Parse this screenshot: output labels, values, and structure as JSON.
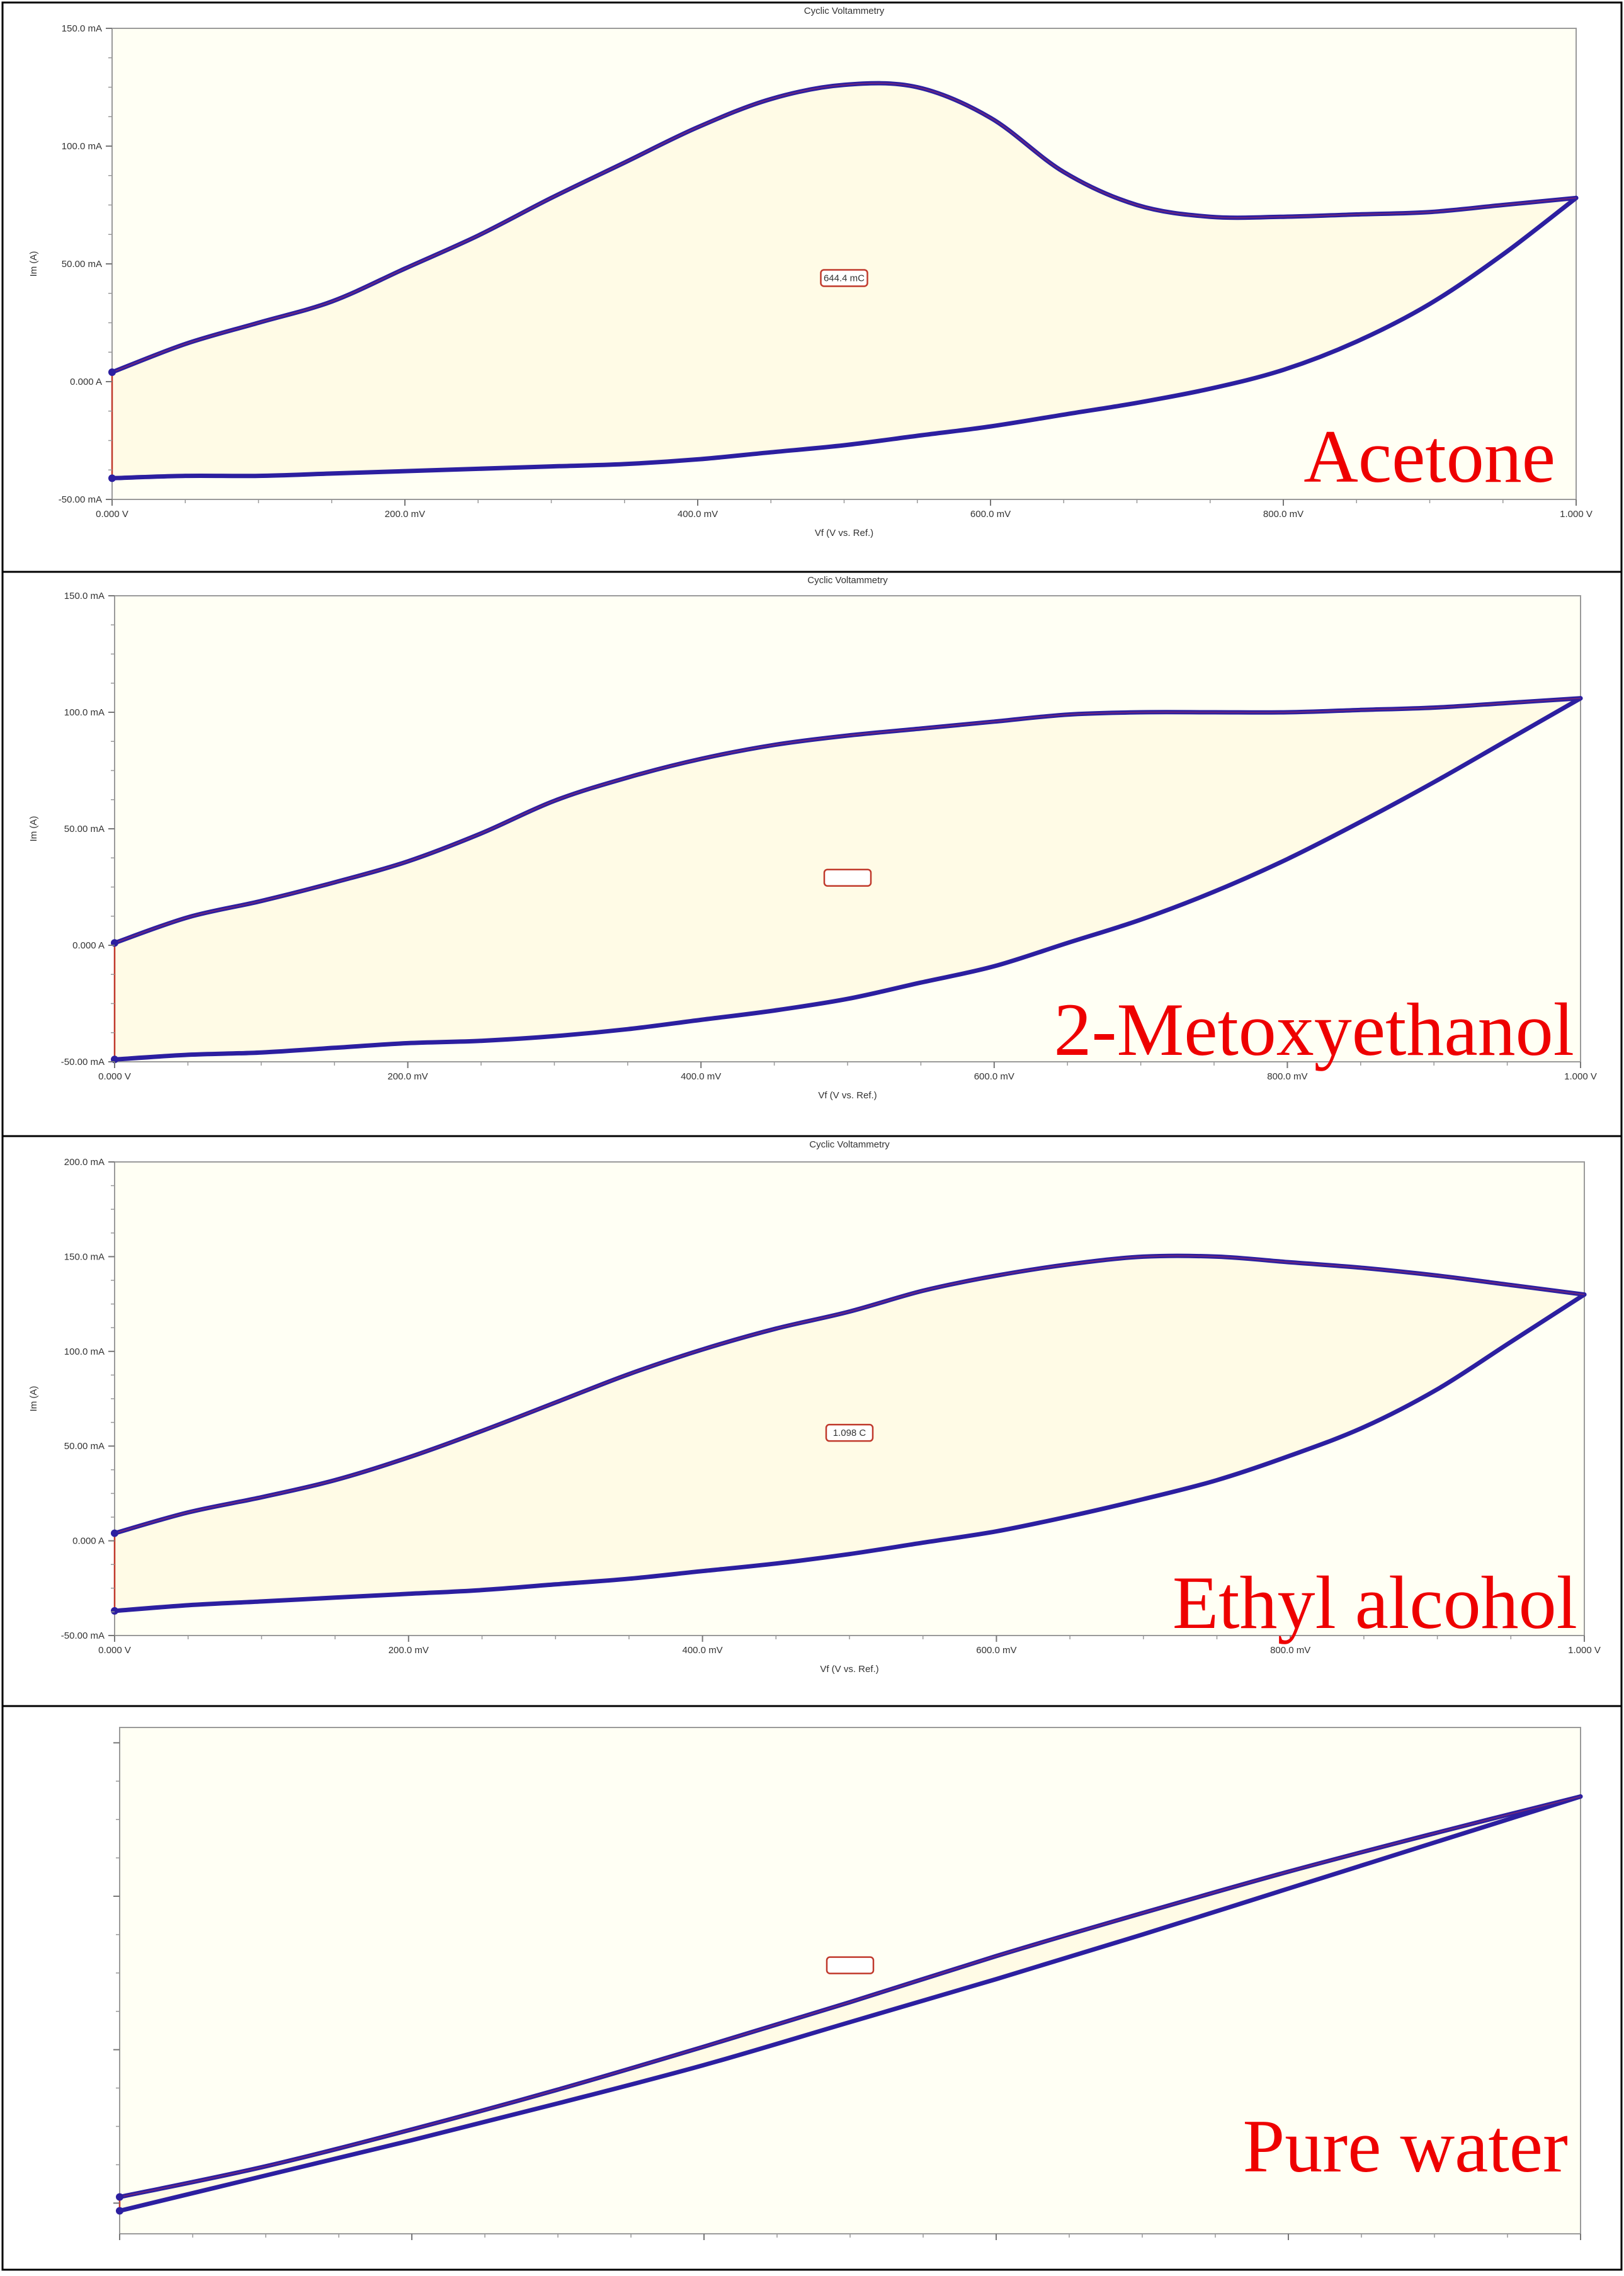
{
  "chart_data": [
    {
      "type": "line",
      "title": "Cyclic Voltammetry",
      "xlabel": "Vf (V vs. Ref.)",
      "ylabel": "Im (A)",
      "xlim": [
        0,
        1
      ],
      "ylim": [
        -50,
        150
      ],
      "x_ticks": [
        0,
        0.2,
        0.4,
        0.6,
        0.8,
        1.0
      ],
      "x_tick_labels": [
        "0.000 V",
        "200.0 mV",
        "400.0 mV",
        "600.0 mV",
        "800.0 mV",
        "1.000 V"
      ],
      "y_ticks": [
        -50,
        0,
        50,
        100,
        150
      ],
      "y_tick_labels": [
        "-50.00 mA",
        "0.000 A",
        "50.00 mA",
        "100.0 mA",
        "150.0 mA"
      ],
      "annotation": "644.4 mC",
      "annotation_at": [
        0.5,
        44
      ],
      "solvent_label": "Acetone",
      "series": [
        {
          "x": [
            0,
            0.05,
            0.1,
            0.15,
            0.2,
            0.25,
            0.3,
            0.35,
            0.4,
            0.45,
            0.5,
            0.55,
            0.6,
            0.65,
            0.7,
            0.75,
            0.8,
            0.85,
            0.9,
            0.95,
            1.0,
            0.95,
            0.9,
            0.85,
            0.8,
            0.75,
            0.7,
            0.65,
            0.6,
            0.55,
            0.5,
            0.45,
            0.4,
            0.35,
            0.3,
            0.25,
            0.2,
            0.15,
            0.1,
            0.05,
            0
          ],
          "y": [
            4,
            16,
            25,
            34,
            48,
            62,
            78,
            93,
            108,
            120,
            126,
            125,
            112,
            89,
            75,
            70,
            70,
            71,
            72,
            75,
            78,
            54,
            33,
            17,
            5,
            -3,
            -9,
            -14,
            -19,
            -23,
            -27,
            -30,
            -33,
            -35,
            -36,
            -37,
            -38,
            -39,
            -40,
            -40,
            -41
          ]
        }
      ]
    },
    {
      "type": "line",
      "title": "Cyclic Voltammetry",
      "xlabel": "Vf (V vs. Ref.)",
      "ylabel": "Im (A)",
      "xlim": [
        0,
        1
      ],
      "ylim": [
        -50,
        150
      ],
      "x_ticks": [
        0,
        0.2,
        0.4,
        0.6,
        0.8,
        1.0
      ],
      "x_tick_labels": [
        "0.000 V",
        "200.0 mV",
        "400.0 mV",
        "600.0 mV",
        "800.0 mV",
        "1.000 V"
      ],
      "y_ticks": [
        -50,
        0,
        50,
        100,
        150
      ],
      "y_tick_labels": [
        "-50.00 mA",
        "0.000 A",
        "50.00 mA",
        "100.0 mA",
        "150.0 mA"
      ],
      "annotation": "",
      "annotation_at": [
        0.5,
        29
      ],
      "solvent_label": "2-Metoxyethanol",
      "series": [
        {
          "x": [
            0,
            0.05,
            0.1,
            0.15,
            0.2,
            0.25,
            0.3,
            0.35,
            0.4,
            0.45,
            0.5,
            0.55,
            0.6,
            0.65,
            0.7,
            0.75,
            0.8,
            0.85,
            0.9,
            0.95,
            1.0,
            0.95,
            0.9,
            0.85,
            0.8,
            0.75,
            0.7,
            0.65,
            0.6,
            0.55,
            0.5,
            0.45,
            0.4,
            0.35,
            0.3,
            0.25,
            0.2,
            0.15,
            0.1,
            0.05,
            0
          ],
          "y": [
            1,
            12,
            19,
            27,
            36,
            48,
            62,
            72,
            80,
            86,
            90,
            93,
            96,
            99,
            100,
            100,
            100,
            101,
            102,
            104,
            106,
            88,
            70,
            53,
            37,
            23,
            11,
            1,
            -9,
            -16,
            -23,
            -28,
            -32,
            -36,
            -39,
            -41,
            -42,
            -44,
            -46,
            -47,
            -49
          ]
        }
      ]
    },
    {
      "type": "line",
      "title": "Cyclic Voltammetry",
      "xlabel": "Vf (V vs. Ref.)",
      "ylabel": "Im (A)",
      "xlim": [
        0,
        1
      ],
      "ylim": [
        -50,
        200
      ],
      "x_ticks": [
        0,
        0.2,
        0.4,
        0.6,
        0.8,
        1.0
      ],
      "x_tick_labels": [
        "0.000 V",
        "200.0 mV",
        "400.0 mV",
        "600.0 mV",
        "800.0 mV",
        "1.000 V"
      ],
      "y_ticks": [
        -50,
        0,
        50,
        100,
        150,
        200
      ],
      "y_tick_labels": [
        "-50.00 mA",
        "0.000 A",
        "50.00 mA",
        "100.0 mA",
        "150.0 mA",
        "200.0 mA"
      ],
      "annotation": "1.098 C",
      "annotation_at": [
        0.5,
        57
      ],
      "solvent_label": "Ethyl alcohol",
      "series": [
        {
          "x": [
            0,
            0.05,
            0.1,
            0.15,
            0.2,
            0.25,
            0.3,
            0.35,
            0.4,
            0.45,
            0.5,
            0.55,
            0.6,
            0.65,
            0.7,
            0.75,
            0.8,
            0.85,
            0.9,
            0.95,
            1.0,
            0.95,
            0.9,
            0.85,
            0.8,
            0.75,
            0.7,
            0.65,
            0.6,
            0.55,
            0.5,
            0.45,
            0.4,
            0.35,
            0.3,
            0.25,
            0.2,
            0.15,
            0.1,
            0.05,
            0
          ],
          "y": [
            4,
            15,
            23,
            32,
            44,
            58,
            73,
            88,
            101,
            112,
            121,
            132,
            140,
            146,
            150,
            150,
            147,
            144,
            140,
            135,
            130,
            105,
            80,
            60,
            45,
            32,
            22,
            13,
            5,
            -1,
            -7,
            -12,
            -16,
            -20,
            -23,
            -26,
            -28,
            -30,
            -32,
            -34,
            -37
          ]
        }
      ]
    },
    {
      "type": "line",
      "title": "",
      "xlabel": "",
      "ylabel": "",
      "xlim": [
        0,
        1
      ],
      "ylim": [
        -20,
        310
      ],
      "x_ticks": [
        0,
        0.2,
        0.4,
        0.6,
        0.8,
        1.0
      ],
      "x_tick_labels": [
        "",
        "",
        "",
        "",
        "",
        ""
      ],
      "y_ticks": [
        0,
        100,
        200,
        300
      ],
      "y_tick_labels": [
        "",
        "",
        "",
        ""
      ],
      "annotation": "",
      "annotation_at": [
        0.5,
        155
      ],
      "solvent_label": "Pure water",
      "series": [
        {
          "x": [
            0,
            0.1,
            0.2,
            0.3,
            0.4,
            0.5,
            0.6,
            0.7,
            0.8,
            0.9,
            1.0,
            0.9,
            0.8,
            0.7,
            0.6,
            0.5,
            0.4,
            0.3,
            0.2,
            0.1,
            0
          ],
          "y": [
            4,
            24,
            48,
            74,
            102,
            131,
            161,
            189,
            216,
            241,
            265,
            235,
            205,
            175,
            146,
            118,
            90,
            65,
            41,
            18,
            -5
          ]
        }
      ]
    }
  ]
}
